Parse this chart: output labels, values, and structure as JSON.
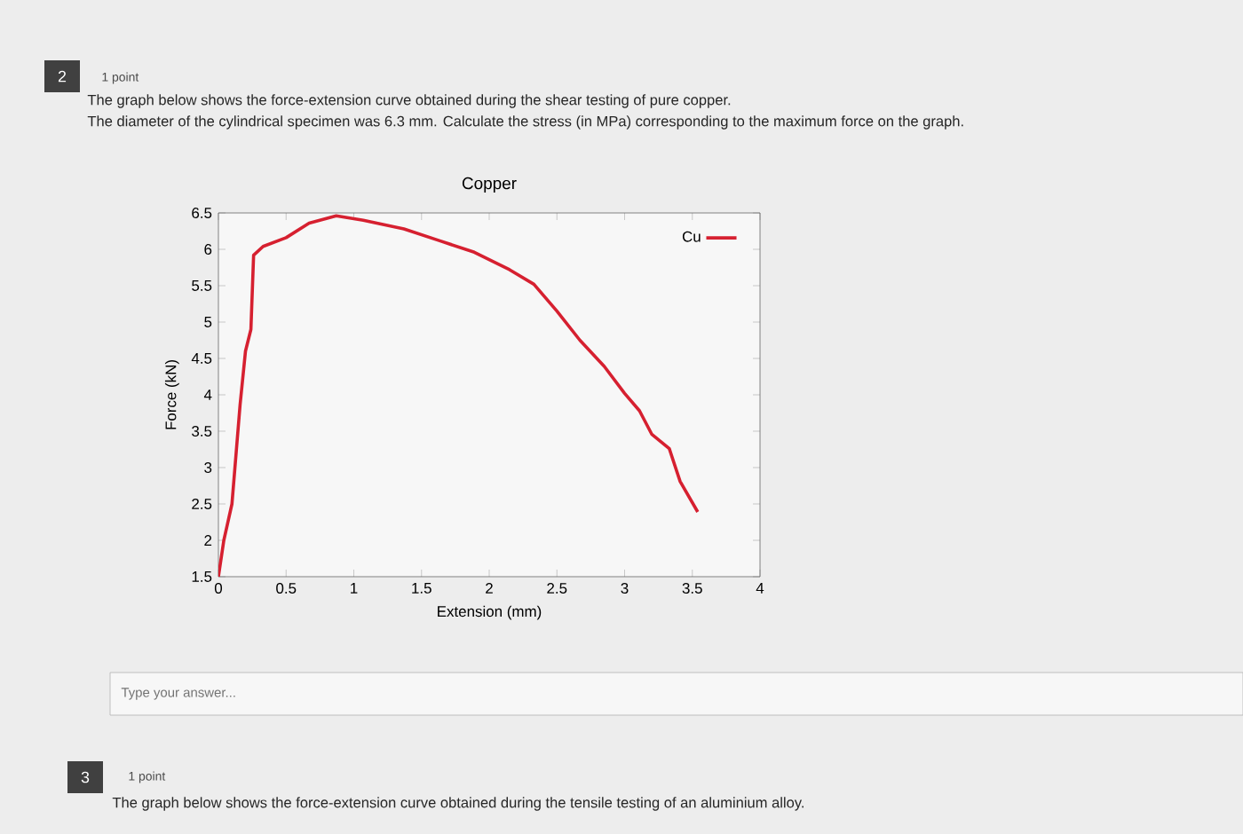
{
  "chart_data": {
    "type": "line",
    "title": "Copper",
    "xlabel": "Extension (mm)",
    "ylabel": "Force (kN)",
    "annotations": [
      "2",
      "1 point",
      "The graph below shows the force-extension curve obtained during the shear testing of pure copper.",
      "The diameter of the cylindrical specimen was 6.3 mm. Calculate the stress (in MPa) corresponding to the maximum force on the graph.",
      "Type your answer...",
      "3",
      "1 point",
      "The graph below shows the force-extension curve obtained during the tensile testing of an aluminium alloy."
    ],
    "series": [
      {
        "name": "Cu",
        "color": "#d62030",
        "x": [
          0,
          0.04,
          0.1,
          0.16,
          0.2,
          0.24,
          0.26,
          0.33,
          0.5,
          0.67,
          0.87,
          1.07,
          1.37,
          1.63,
          1.89,
          2.15,
          2.33,
          2.5,
          2.67,
          2.85,
          3.0,
          3.11,
          3.2,
          3.33,
          3.41,
          3.54
        ],
        "values": [
          1.5,
          2.0,
          2.5,
          3.86,
          4.6,
          4.9,
          5.92,
          6.04,
          6.16,
          6.36,
          6.46,
          6.4,
          6.28,
          6.12,
          5.96,
          5.72,
          5.52,
          5.15,
          4.75,
          4.39,
          4.02,
          3.78,
          3.46,
          3.26,
          2.81,
          2.39
        ]
      }
    ],
    "xlim": [
      0,
      4
    ],
    "ylim": [
      1.5,
      6.5
    ],
    "xticks": [
      0,
      0.5,
      1,
      1.5,
      2,
      2.5,
      3,
      3.5,
      4
    ],
    "yticks": [
      1.5,
      2,
      2.5,
      3,
      3.5,
      4,
      4.5,
      5,
      5.5,
      6,
      6.5
    ],
    "legend": "top right",
    "marker": "none",
    "line_style": "solid"
  }
}
